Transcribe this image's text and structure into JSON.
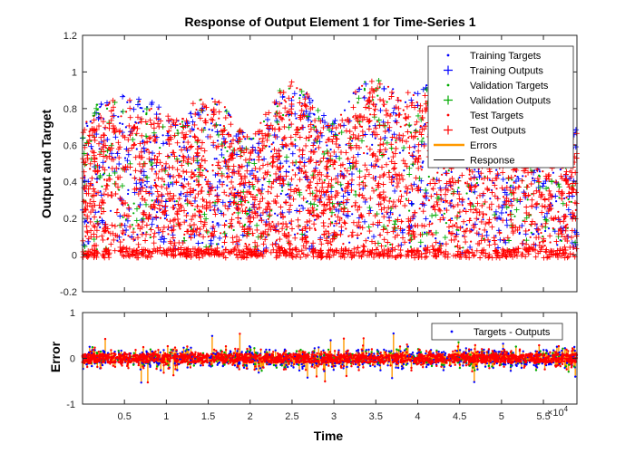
{
  "chart_data": [
    {
      "type": "line",
      "title": "Response of Output Element 1 for Time-Series 1",
      "xlabel": "",
      "ylabel": "Output and Target",
      "xlim": [
        0,
        59000
      ],
      "ylim": [
        -0.2,
        1.2
      ],
      "yticks": [
        "-0.2",
        "0",
        "0.2",
        "0.4",
        "0.6",
        "0.8",
        "1",
        "1.2"
      ],
      "ytick_values": [
        -0.2,
        0,
        0.2,
        0.4,
        0.6,
        0.8,
        1.0,
        1.2
      ],
      "grid": false,
      "legend_position": "top-right",
      "legend": [
        {
          "label": "Training Targets",
          "marker": "dot",
          "color": "#0000ff"
        },
        {
          "label": "Training Outputs",
          "marker": "plus",
          "color": "#0000ff"
        },
        {
          "label": "Validation Targets",
          "marker": "dot",
          "color": "#00aa00"
        },
        {
          "label": "Validation Outputs",
          "marker": "plus",
          "color": "#00aa00"
        },
        {
          "label": "Test Targets",
          "marker": "dot",
          "color": "#ff0000"
        },
        {
          "label": "Test Outputs",
          "marker": "plus",
          "color": "#ff0000"
        },
        {
          "label": "Errors",
          "marker": "line",
          "color": "#ff9900"
        },
        {
          "label": "Response",
          "marker": "line",
          "color": "#000000"
        }
      ],
      "envelope": {
        "x": [
          0,
          2000,
          5000,
          8000,
          11000,
          14000,
          16500,
          20000,
          23500,
          25000,
          27000,
          29500,
          33000,
          35000,
          38000,
          41500,
          45000,
          49000,
          53000,
          57000,
          59000
        ],
        "upper": [
          0.72,
          0.82,
          0.86,
          0.84,
          0.72,
          0.86,
          0.84,
          0.62,
          0.88,
          0.94,
          0.86,
          0.7,
          0.92,
          0.97,
          0.85,
          0.93,
          0.7,
          0.8,
          0.74,
          0.76,
          0.68
        ],
        "lower": [
          0,
          0,
          0,
          0,
          0,
          0,
          0,
          0,
          0,
          0,
          0,
          0,
          0,
          0,
          0,
          0,
          0,
          0,
          0,
          0,
          0
        ]
      }
    },
    {
      "type": "line",
      "title": "",
      "xlabel": "Time",
      "ylabel": "Error",
      "xlim": [
        0,
        59000
      ],
      "ylim": [
        -1,
        1
      ],
      "xticks": [
        "0.5",
        "1",
        "1.5",
        "2",
        "2.5",
        "3",
        "3.5",
        "4",
        "4.5",
        "5",
        "5.5"
      ],
      "xtick_values": [
        5000,
        10000,
        15000,
        20000,
        25000,
        30000,
        35000,
        40000,
        45000,
        50000,
        55000
      ],
      "x_exponent_label": "×10",
      "x_exponent": "4",
      "yticks": [
        "-1",
        "0",
        "1"
      ],
      "ytick_values": [
        -1,
        0,
        1
      ],
      "grid": false,
      "legend_position": "top-right",
      "legend": [
        {
          "label": "Targets - Outputs",
          "marker": "dot",
          "color": "#0000ff"
        }
      ],
      "error_spread": 0.25,
      "error_max": 0.62,
      "error_min": -0.75
    }
  ]
}
